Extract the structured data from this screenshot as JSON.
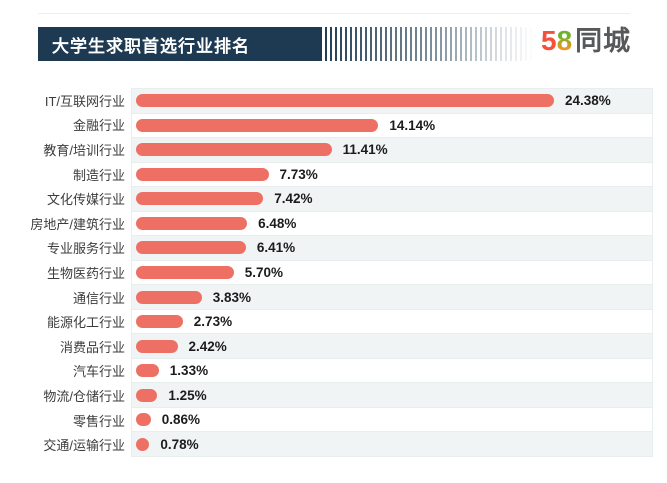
{
  "header": {
    "title": "大学生求职首选行业排名",
    "banner_color": "#1d3a52",
    "brand": {
      "logo_number_5": "5",
      "logo_number_8": "8",
      "logo_text": "同城",
      "color_5": "#f4503a",
      "color_8_top": "#6db42c",
      "color_8_bottom": "#f7941d",
      "text_color": "#57585a"
    }
  },
  "chart_data": {
    "type": "bar",
    "orientation": "horizontal",
    "title": "大学生求职首选行业排名",
    "categories": [
      "IT/互联网行业",
      "金融行业",
      "教育/培训行业",
      "制造行业",
      "文化传媒行业",
      "房地产/建筑行业",
      "专业服务行业",
      "生物医药行业",
      "通信行业",
      "能源化工行业",
      "消费品行业",
      "汽车行业",
      "物流/仓储行业",
      "零售行业",
      "交通/运输行业"
    ],
    "values": [
      24.38,
      14.14,
      11.41,
      7.73,
      7.42,
      6.48,
      6.41,
      5.7,
      3.83,
      2.73,
      2.42,
      1.33,
      1.25,
      0.86,
      0.78
    ],
    "value_labels": [
      "24.38%",
      "14.14%",
      "11.41%",
      "7.73%",
      "7.42%",
      "6.48%",
      "6.41%",
      "5.70%",
      "3.83%",
      "2.73%",
      "2.42%",
      "1.33%",
      "1.25%",
      "0.86%",
      "0.78%"
    ],
    "xlabel": "",
    "ylabel": "",
    "xlim": [
      0,
      30.4
    ],
    "bar_color": "#ee7065",
    "row_stripe_color": "#f0f4f5",
    "separator_color": "#e8edee",
    "grid": "alternating-row-stripes",
    "legend": "none"
  }
}
